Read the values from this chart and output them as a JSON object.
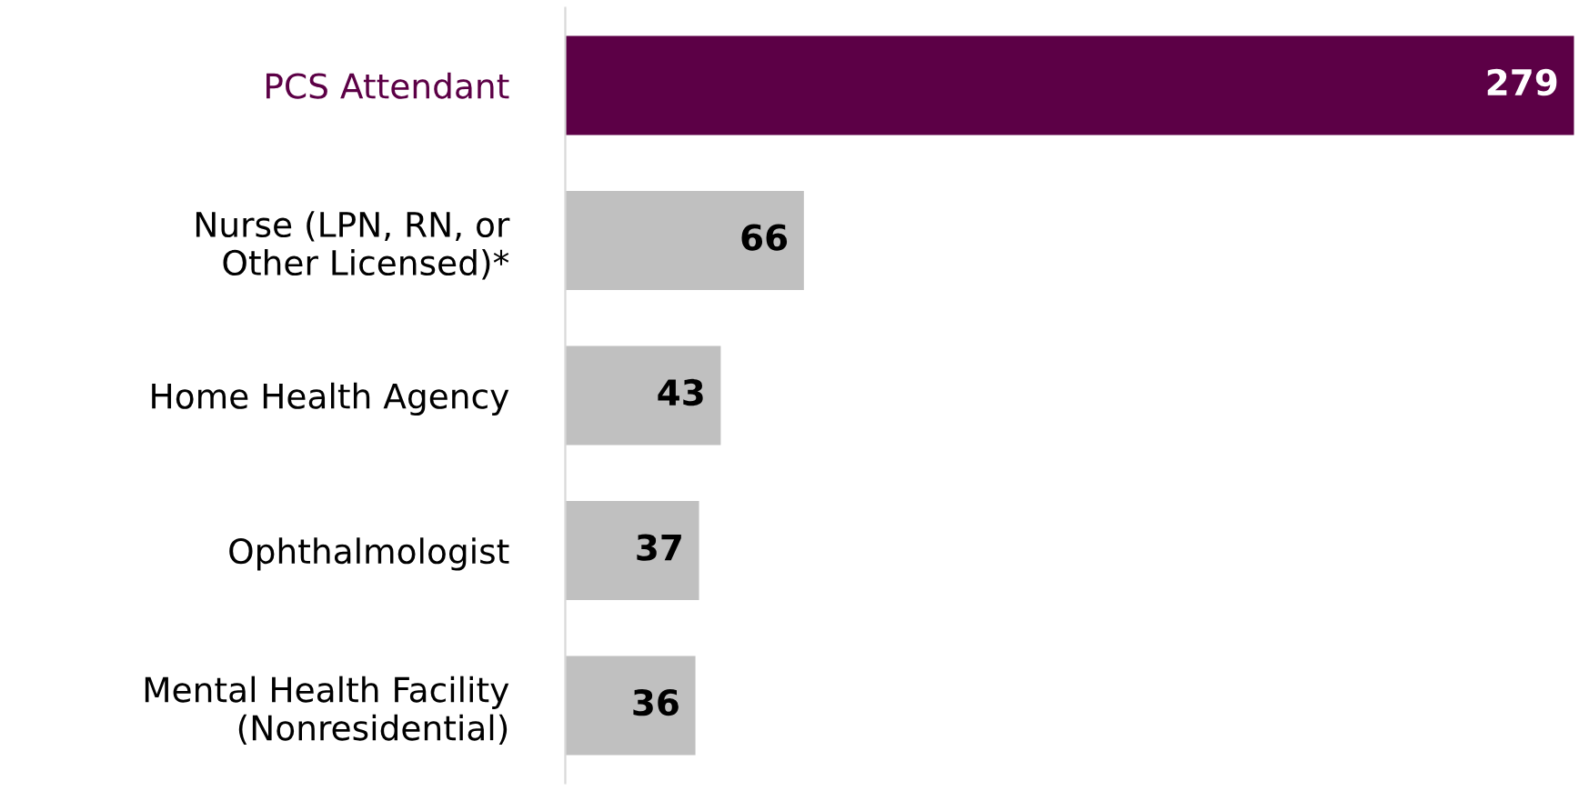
{
  "chart_data": {
    "type": "bar",
    "orientation": "horizontal",
    "tick_labels": "y",
    "grid": false,
    "data_labels": true,
    "categories": [
      "PCS Attendant",
      "Nurse (LPN, RN, or\nOther Licensed)*",
      "Home Health Agency",
      "Ophthalmologist",
      "Mental Health Facility\n(Nonresidential)"
    ],
    "values": [
      279,
      66,
      43,
      37,
      36
    ],
    "colors": [
      "#5c0046",
      "#c0c0c0",
      "#c0c0c0",
      "#c0c0c0",
      "#c0c0c0"
    ]
  }
}
